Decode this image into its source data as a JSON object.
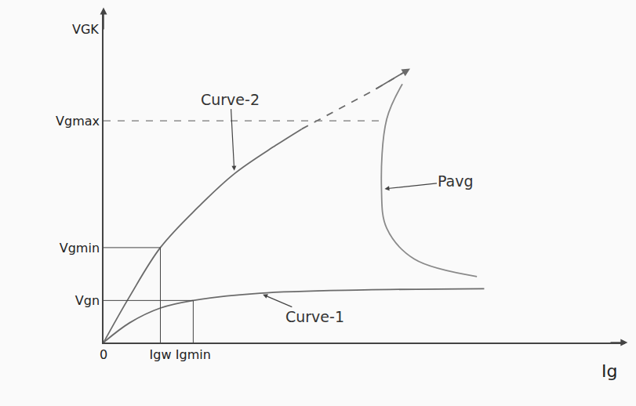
{
  "chart_data": {
    "type": "line",
    "x_label": "Ig",
    "y_label": "VGK",
    "xlim": [
      0,
      100
    ],
    "ylim": [
      0,
      100
    ],
    "xticks": [
      0,
      {
        "value": 10.9,
        "label": "Igw"
      },
      {
        "value": 17.2,
        "label": "Igmin"
      }
    ],
    "yticks": [
      {
        "value": 12.8,
        "label": "Vgn"
      },
      {
        "value": 28.9,
        "label": "Vgmin"
      },
      {
        "value": 67.5,
        "label": "Vgmax"
      }
    ],
    "grid": false,
    "series": [
      {
        "name": "Curve-2",
        "color": "#6b6b6b",
        "line_style": "solid",
        "x": [
          0,
          5,
          10.9,
          18,
          25.1,
          33,
          38
        ],
        "values": [
          0,
          14,
          28.9,
          41,
          51.4,
          60,
          65
        ]
      },
      {
        "color": "#6b6b6b",
        "line_style": "dashed",
        "marker": "arrow",
        "x": [
          38,
          45,
          52,
          58.8
        ],
        "values": [
          65,
          71,
          77,
          83.4
        ]
      },
      {
        "name": "Curve-1",
        "color": "#6b6b6b",
        "line_style": "solid",
        "x": [
          0,
          5,
          10.9,
          17.2,
          30,
          50,
          73
        ],
        "values": [
          0,
          6,
          10.5,
          12.8,
          15,
          16,
          16.4
        ]
      },
      {
        "name": "Pavg",
        "color": "#8a8a8a",
        "line_style": "solid",
        "x": [
          57.3,
          54.3,
          53.3,
          54.3,
          59.6,
          71.6
        ],
        "values": [
          78.7,
          68,
          46.7,
          34.8,
          25.4,
          20.1
        ]
      }
    ]
  }
}
